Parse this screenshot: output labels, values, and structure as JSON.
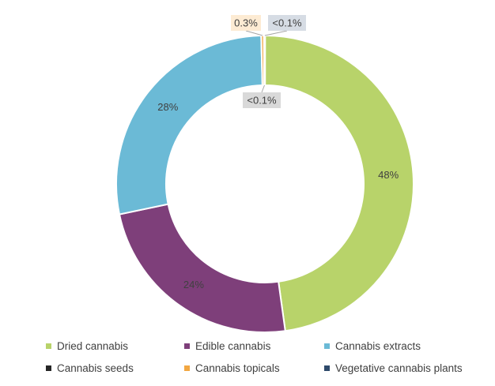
{
  "chart_data": {
    "type": "pie",
    "variant": "donut",
    "title": "",
    "series": [
      {
        "name": "Dried cannabis",
        "value": 48,
        "label": "48%",
        "color": "#B8D36A"
      },
      {
        "name": "Edible cannabis",
        "value": 24,
        "label": "24%",
        "color": "#7E3F7A"
      },
      {
        "name": "Cannabis extracts",
        "value": 28,
        "label": "28%",
        "color": "#6BBAD6"
      },
      {
        "name": "Cannabis seeds",
        "value": 0.05,
        "label": "<0.1%",
        "color": "#262626"
      },
      {
        "name": "Cannabis topicals",
        "value": 0.3,
        "label": "0.3%",
        "color": "#F2A742"
      },
      {
        "name": "Vegetative cannabis plants",
        "value": 0.05,
        "label": "<0.1%",
        "color": "#2E4A6B"
      }
    ],
    "legend_position": "bottom",
    "label_box_colors": {
      "Cannabis topicals": "#FDEBD3",
      "Cannabis seeds": "#D9D9D9",
      "Vegetative cannabis plants": "#D6DCE4"
    }
  }
}
